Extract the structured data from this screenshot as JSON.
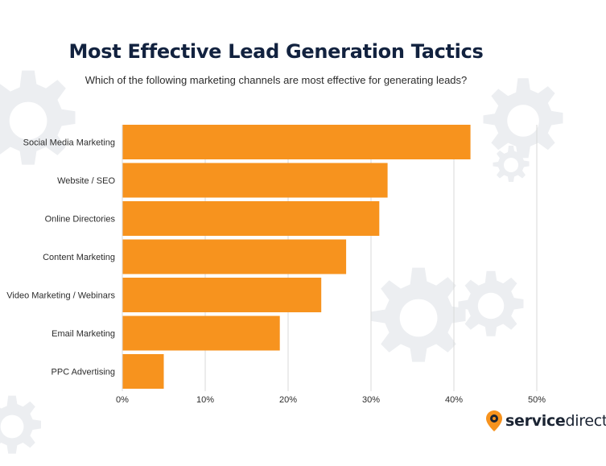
{
  "title": "Most Effective Lead Generation Tactics",
  "subtitle": "Which of the following marketing channels are most effective for generating leads?",
  "brand": {
    "name_bold": "service",
    "name_regular": "direct",
    "accent_color": "#f7931e",
    "icon": "location-pin-gear-icon"
  },
  "colors": {
    "bar": "#f7931e",
    "grid": "#d9d9d9",
    "text": "#2c2c2c",
    "title": "#12223f"
  },
  "chart_data": {
    "type": "bar",
    "orientation": "horizontal",
    "categories": [
      "Social Media Marketing",
      "Website / SEO",
      "Online Directories",
      "Content Marketing",
      "Video Marketing / Webinars",
      "Email Marketing",
      "PPC Advertising"
    ],
    "values": [
      42,
      32,
      31,
      27,
      24,
      19,
      5
    ],
    "value_unit": "%",
    "xlim": [
      0,
      50
    ],
    "xticks": [
      "0%",
      "10%",
      "20%",
      "30%",
      "40%",
      "50%"
    ],
    "grid": true
  }
}
